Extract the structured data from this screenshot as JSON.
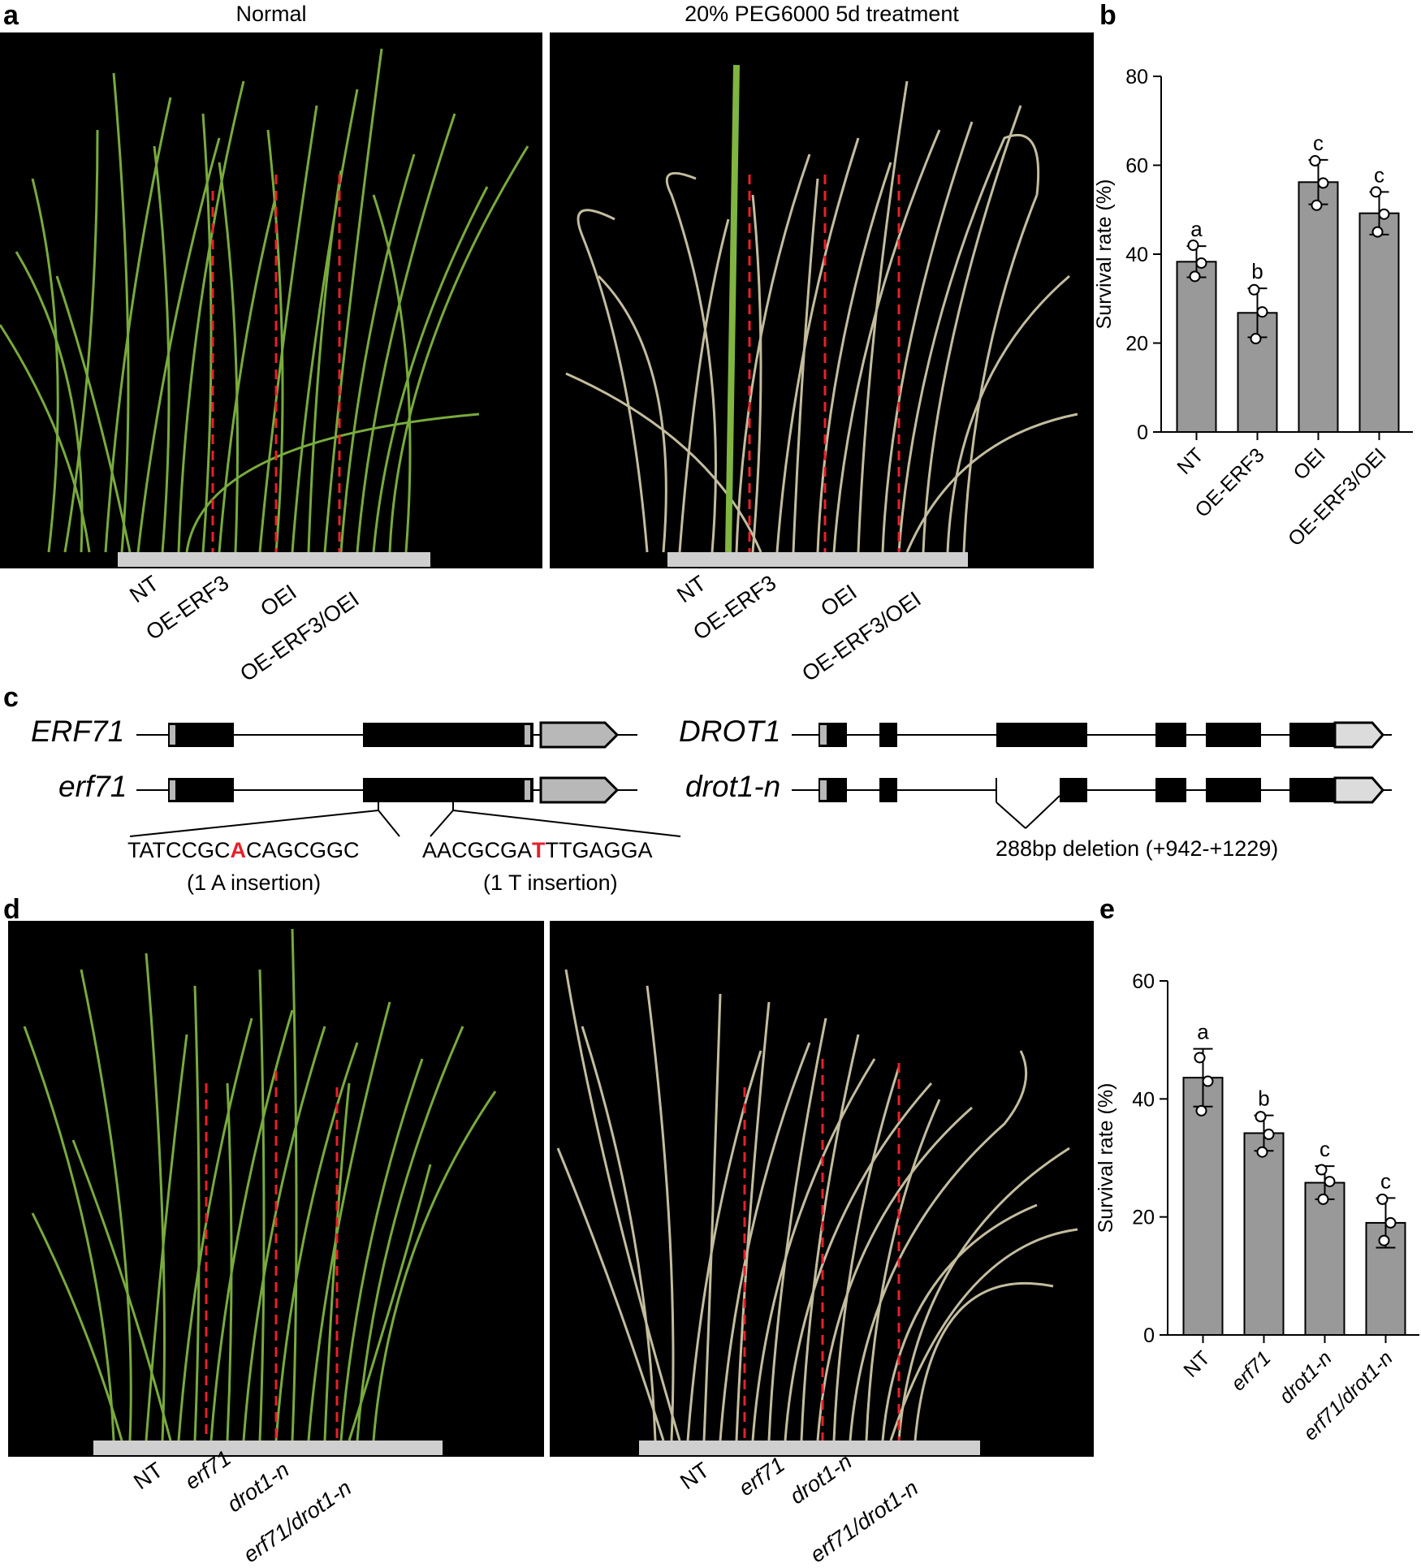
{
  "panels": {
    "a": "a",
    "b": "b",
    "c": "c",
    "d": "d",
    "e": "e"
  },
  "panel_a": {
    "title_left": "Normal",
    "title_right": "20% PEG6000 5d treatment",
    "labels_left": [
      "NT",
      "OE-ERF3",
      "OEI",
      "OE-ERF3/OEI"
    ],
    "labels_right": [
      "NT",
      "OE-ERF3",
      "OEI",
      "OE-ERF3/OEI"
    ]
  },
  "panel_c": {
    "gene1": "ERF71",
    "gene1_mut": "erf71",
    "gene2": "DROT1",
    "gene2_mut": "drot1-n",
    "seq1_pre": "TATCCGC",
    "seq1_mut": "A",
    "seq1_post": "CAGCGGC",
    "seq1_note": "(1 A insertion)",
    "seq2_pre": "AACGCGA",
    "seq2_mut": "T",
    "seq2_post": "TTGAGGA",
    "seq2_note": "(1 T insertion)",
    "deletion_note": "288bp deletion (+942-+1229)"
  },
  "panel_d": {
    "labels_left": [
      "NT",
      "erf71",
      "drot1-n",
      "erf71/drot1-n"
    ],
    "labels_right": [
      "NT",
      "erf71",
      "drot1-n",
      "erf71/drot1-n"
    ]
  },
  "colors": {
    "bar": "#999999",
    "mutation": "#e8202a",
    "dashed_line": "#e8202a",
    "healthy_leaf": "#7fb540",
    "wilted_leaf": "#d9d2b0",
    "utr": "#b8b8b8"
  },
  "chart_data": [
    {
      "type": "bar",
      "panel": "b",
      "categories": [
        "NT",
        "OE-ERF3",
        "OEI",
        "OE-ERF3/OEI"
      ],
      "values": [
        38.3,
        26.8,
        56.2,
        49.2
      ],
      "errors": [
        3.5,
        5.5,
        5.0,
        4.8
      ],
      "points": [
        [
          42,
          38,
          35
        ],
        [
          32,
          27,
          21
        ],
        [
          61,
          56,
          51
        ],
        [
          54,
          49,
          45
        ]
      ],
      "sig_letters": [
        "a",
        "b",
        "c",
        "c"
      ],
      "xlabel": "",
      "ylabel": "Survival rate (%)",
      "ylim": [
        0,
        80
      ],
      "yticks": [
        0,
        20,
        40,
        60,
        80
      ],
      "grid": false,
      "italic_labels": false
    },
    {
      "type": "bar",
      "panel": "e",
      "categories": [
        "NT",
        "erf71",
        "drot1-n",
        "erf71/drot1-n"
      ],
      "values": [
        43.6,
        34.2,
        25.8,
        19.0
      ],
      "errors": [
        4.9,
        3.0,
        2.8,
        4.2
      ],
      "points": [
        [
          47,
          43,
          38
        ],
        [
          37,
          34,
          31
        ],
        [
          28,
          26,
          23
        ],
        [
          23,
          19,
          16
        ]
      ],
      "sig_letters": [
        "a",
        "b",
        "c",
        "c"
      ],
      "xlabel": "",
      "ylabel": "Survival rate (%)",
      "ylim": [
        0,
        60
      ],
      "yticks": [
        0,
        20,
        40,
        60
      ],
      "grid": false,
      "italic_labels": true
    }
  ]
}
